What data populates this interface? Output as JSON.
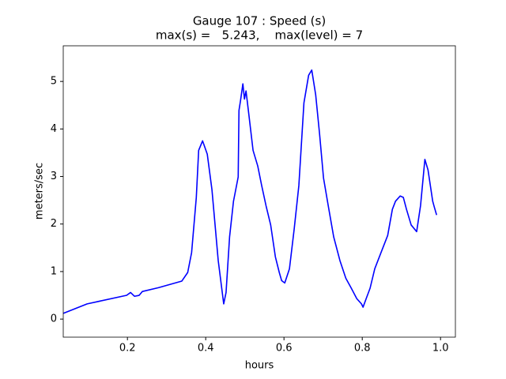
{
  "chart_data": {
    "type": "line",
    "title": "Gauge 107 : Speed (s)",
    "subtitle": "max(s) =   5.243,    max(level) = 7",
    "xlabel": "hours",
    "ylabel": "meters/sec",
    "xlim": [
      0.036,
      1.038
    ],
    "ylim": [
      -0.38,
      5.75
    ],
    "xticks": [
      0.2,
      0.4,
      0.6,
      0.8,
      {
        "value": 1,
        "label": "1.0"
      }
    ],
    "yticks": [
      0,
      1,
      2,
      3,
      4,
      5
    ],
    "series": [
      {
        "color": "#0000ff",
        "x": [
          0.036,
          0.097,
          0.198,
          0.208,
          0.218,
          0.23,
          0.238,
          0.279,
          0.339,
          0.354,
          0.364,
          0.376,
          0.382,
          0.392,
          0.404,
          0.416,
          0.432,
          0.446,
          0.452,
          0.461,
          0.471,
          0.483,
          0.485,
          0.489,
          0.495,
          0.499,
          0.503,
          0.509,
          0.521,
          0.533,
          0.543,
          0.554,
          0.566,
          0.578,
          0.588,
          0.594,
          0.602,
          0.614,
          0.626,
          0.638,
          0.651,
          0.663,
          0.671,
          0.681,
          0.691,
          0.701,
          0.713,
          0.727,
          0.743,
          0.758,
          0.772,
          0.786,
          0.798,
          0.802,
          0.81,
          0.82,
          0.832,
          0.848,
          0.865,
          0.877,
          0.885,
          0.897,
          0.905,
          0.913,
          0.925,
          0.939,
          0.949,
          0.96,
          0.968,
          0.98,
          0.984,
          0.99
        ],
        "values": [
          0.12,
          0.32,
          0.5,
          0.56,
          0.48,
          0.5,
          0.58,
          0.66,
          0.8,
          0.98,
          1.4,
          2.56,
          3.55,
          3.75,
          3.47,
          2.72,
          1.23,
          0.32,
          0.56,
          1.73,
          2.48,
          2.99,
          4.39,
          4.6,
          4.95,
          4.63,
          4.8,
          4.39,
          3.55,
          3.22,
          2.81,
          2.39,
          1.98,
          1.31,
          0.98,
          0.81,
          0.76,
          1.06,
          1.89,
          2.81,
          4.55,
          5.13,
          5.24,
          4.72,
          3.89,
          2.97,
          2.39,
          1.73,
          1.23,
          0.86,
          0.65,
          0.43,
          0.32,
          0.25,
          0.43,
          0.65,
          1.06,
          1.4,
          1.76,
          2.31,
          2.48,
          2.59,
          2.56,
          2.31,
          1.98,
          1.84,
          2.39,
          3.36,
          3.14,
          2.48,
          2.36,
          2.19
        ]
      }
    ]
  }
}
